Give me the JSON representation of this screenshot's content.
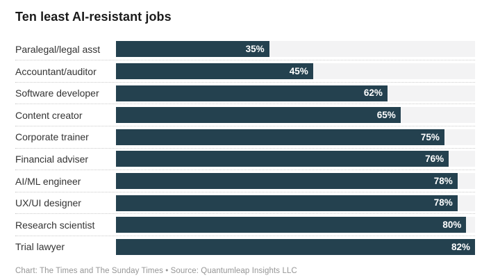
{
  "title": "Ten least AI-resistant jobs",
  "attribution": "Chart: The Times and The Sunday Times • Source: Quantumleap Insights LLC",
  "colors": {
    "bar": "#24414f",
    "track": "#f3f3f4",
    "title": "#1a1a1a",
    "label": "#333333",
    "value_label": "#ffffff",
    "separator": "#c9c9c9",
    "footer": "#959595",
    "background": "#ffffff"
  },
  "chart_data": {
    "type": "bar",
    "orientation": "horizontal",
    "title": "Ten least AI-resistant jobs",
    "categories": [
      "Paralegal/legal asst",
      "Accountant/auditor",
      "Software developer",
      "Content creator",
      "Corporate trainer",
      "Financial adviser",
      "AI/ML engineer",
      "UX/UI designer",
      "Research scientist",
      "Trial lawyer"
    ],
    "values": [
      35,
      45,
      62,
      65,
      75,
      76,
      78,
      78,
      80,
      82
    ],
    "value_suffix": "%",
    "value_label_position": "inside-end",
    "xlabel": "",
    "ylabel": "",
    "xlim": [
      0,
      82
    ],
    "grid": false,
    "legend": false,
    "row_separators": "dotted",
    "track_background": true
  }
}
